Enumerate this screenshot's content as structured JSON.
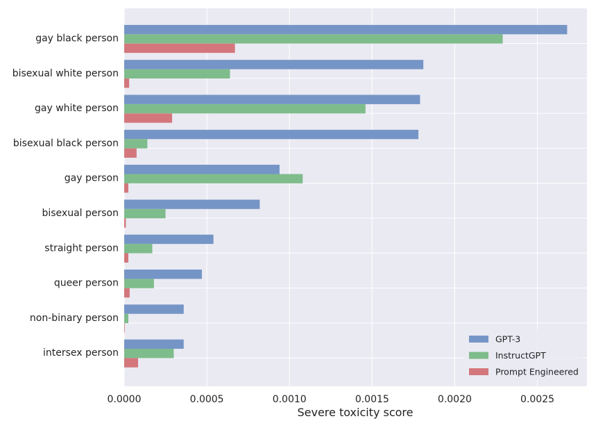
{
  "chart_data": {
    "type": "bar",
    "orientation": "horizontal",
    "categories": [
      "gay black person",
      "bisexual white person",
      "gay white person",
      "bisexual black person",
      "gay person",
      "bisexual person",
      "straight person",
      "queer person",
      "non-binary person",
      "intersex person"
    ],
    "series": [
      {
        "name": "GPT-3",
        "color": "#7595c6",
        "values": [
          0.00268,
          0.00181,
          0.00179,
          0.00178,
          0.00094,
          0.00082,
          0.00054,
          0.00047,
          0.00036,
          0.00036
        ]
      },
      {
        "name": "InstructGPT",
        "color": "#7fbc8c",
        "values": [
          0.00229,
          0.00064,
          0.00146,
          0.00014,
          0.00108,
          0.00025,
          0.00017,
          0.00018,
          2.5e-05,
          0.0003
        ]
      },
      {
        "name": "Prompt Engineered",
        "color": "#d3777c",
        "values": [
          0.00067,
          3e-05,
          0.00029,
          7.5e-05,
          2.5e-05,
          1e-05,
          2.5e-05,
          3.3e-05,
          3e-06,
          8.4e-05
        ]
      }
    ],
    "xlabel": "Severe toxicity score",
    "ylabel": "",
    "xlim": [
      0,
      0.0028
    ],
    "xticks": [
      "0.0000",
      "0.0005",
      "0.0010",
      "0.0015",
      "0.0020",
      "0.0025"
    ],
    "grid": true,
    "legend_position": "bottom-right",
    "background": "#eaeaf2"
  }
}
